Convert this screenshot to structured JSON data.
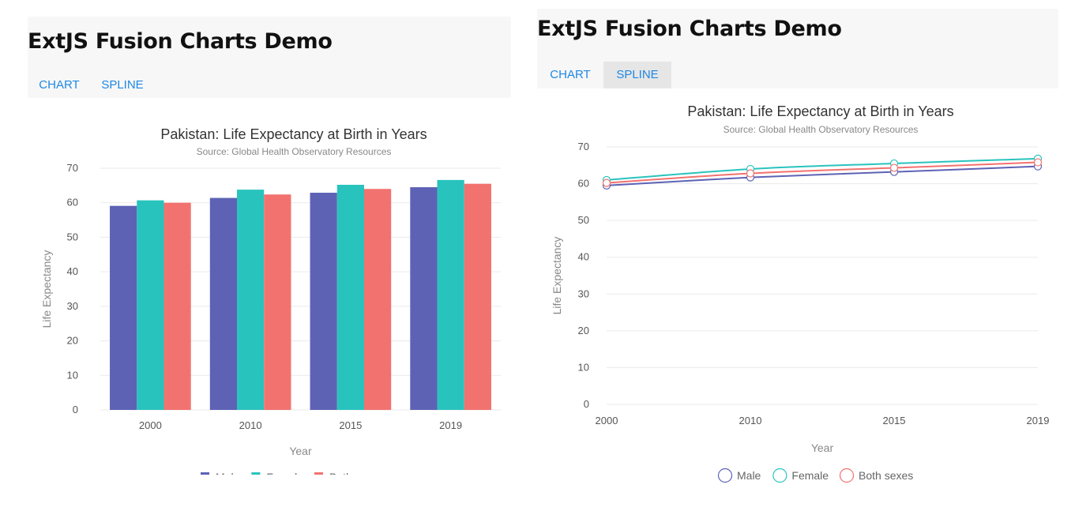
{
  "panels": [
    {
      "app_title": "ExtJS Fusion Charts Demo",
      "tabs": [
        {
          "label": "CHART",
          "active": false
        },
        {
          "label": "SPLINE",
          "active": false
        }
      ]
    },
    {
      "app_title": "ExtJS Fusion Charts Demo",
      "tabs": [
        {
          "label": "CHART",
          "active": false
        },
        {
          "label": "SPLINE",
          "active": true
        }
      ]
    }
  ],
  "chart_data": [
    {
      "type": "bar",
      "title": "Pakistan: Life Expectancy at Birth in Years",
      "subtitle": "Source: Global Health Observatory Resources",
      "xlabel": "Year",
      "ylabel": "Life Expectancy",
      "ylim": [
        0,
        70
      ],
      "yticks": [
        0,
        10,
        20,
        30,
        40,
        50,
        60,
        70
      ],
      "categories": [
        "2000",
        "2010",
        "2015",
        "2019"
      ],
      "series": [
        {
          "name": "Male",
          "color": "#5d62b5",
          "values": [
            59.1,
            61.4,
            62.9,
            64.5
          ]
        },
        {
          "name": "Female",
          "color": "#29c3be",
          "values": [
            60.7,
            63.8,
            65.2,
            66.6
          ]
        },
        {
          "name": "Both sexes",
          "color": "#f2726f",
          "values": [
            60.0,
            62.4,
            64.0,
            65.5
          ]
        }
      ],
      "legend_position": "bottom",
      "grid": true
    },
    {
      "type": "line",
      "title": "Pakistan: Life Expectancy at Birth in Years",
      "subtitle": "Source: Global Health Observatory Resources",
      "xlabel": "Year",
      "ylabel": "Life Expectancy",
      "ylim": [
        0,
        70
      ],
      "yticks": [
        0,
        10,
        20,
        30,
        40,
        50,
        60,
        70
      ],
      "categories": [
        "2000",
        "2010",
        "2015",
        "2019"
      ],
      "series": [
        {
          "name": "Male",
          "color": "#5d62b5",
          "values": [
            59.5,
            61.7,
            63.2,
            64.7
          ]
        },
        {
          "name": "Female",
          "color": "#29c3be",
          "values": [
            61.0,
            64.0,
            65.5,
            66.8
          ]
        },
        {
          "name": "Both sexes",
          "color": "#f2726f",
          "values": [
            60.2,
            62.8,
            64.3,
            65.8
          ]
        }
      ],
      "legend_position": "bottom",
      "grid": true
    }
  ]
}
